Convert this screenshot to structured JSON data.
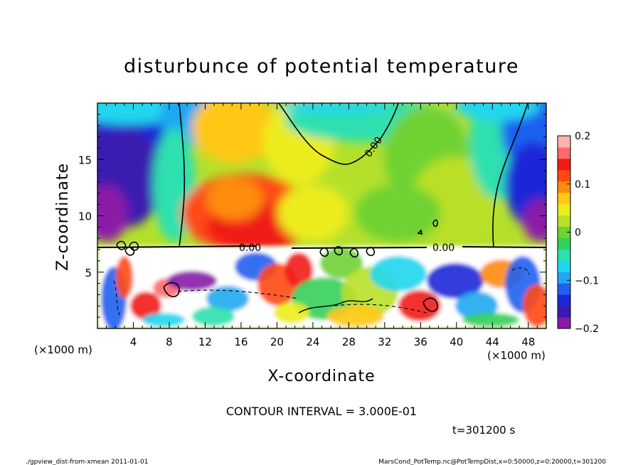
{
  "chart_data": {
    "type": "heatmap",
    "title": "disturbunce of potential temperature",
    "xlabel": "X-coordinate",
    "ylabel": "Z-coordinate",
    "x_unit_left": "(×1000 m)",
    "x_unit_right": "(×1000 m)",
    "xlim": [
      0,
      50
    ],
    "ylim": [
      0,
      20
    ],
    "x_ticks": [
      "4",
      "8",
      "12",
      "16",
      "20",
      "24",
      "28",
      "32",
      "36",
      "40",
      "44",
      "48"
    ],
    "y_ticks": [
      "5",
      "10",
      "15"
    ],
    "colorbar": {
      "range": [
        -0.2,
        0.2
      ],
      "tick_labels": [
        "0.2",
        "0.1",
        "0",
        "−0.1",
        "−0.2"
      ],
      "tick_values": [
        0.2,
        0.1,
        0,
        -0.1,
        -0.2
      ],
      "colors": [
        "#8a1aa8",
        "#3a1ab0",
        "#1a28d8",
        "#1f60f0",
        "#1fa8f2",
        "#20d6ee",
        "#2ee0b0",
        "#34d05a",
        "#6fd232",
        "#b9e028",
        "#ecec1c",
        "#ffc814",
        "#ff8c10",
        "#ff4a14",
        "#f01a18",
        "#ff6a6a",
        "#ffb2b2"
      ]
    },
    "contour_labels": [
      "0.00",
      "0.00",
      "0.00"
    ],
    "contour_interval_text": "CONTOUR INTERVAL = 3.000E-01",
    "time_text": "t=301200 s"
  },
  "footer": {
    "left": "./gpview_dist-from-xmean  2011-01-01",
    "right": "MarsCond_PotTemp.nc@PotTempDist,x=0:50000,z=0:20000,t=301200"
  }
}
